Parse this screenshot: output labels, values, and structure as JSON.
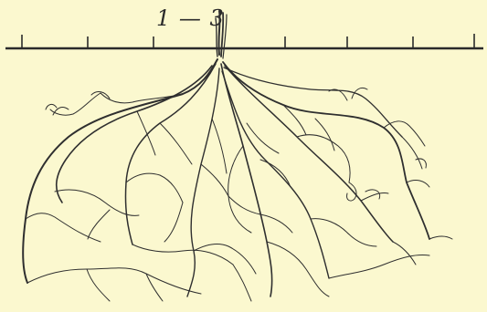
{
  "figure": {
    "label": "1 — 3",
    "ink": "#2f2f2f",
    "paper": "#fbf8cf"
  }
}
